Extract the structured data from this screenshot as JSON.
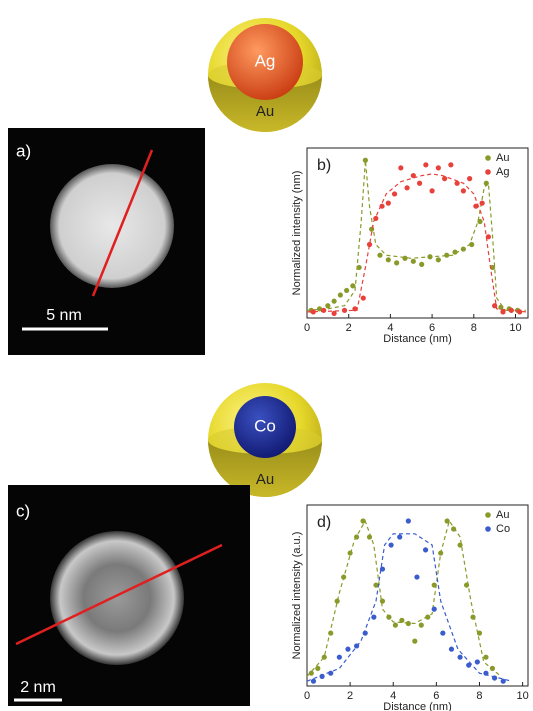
{
  "figure": {
    "sphere_top": {
      "core": "Ag",
      "shell": "Au"
    },
    "panel_a": {
      "label": "a)",
      "scale": "5 nm"
    },
    "sphere_bottom": {
      "core": "Co",
      "shell": "Au"
    },
    "panel_c": {
      "label": "c)",
      "scale": "2 nm"
    }
  },
  "chart_data": [
    {
      "type": "scatter",
      "panel_label": "b)",
      "x_label": "Distance (nm)",
      "y_label": "Normalized intensity (nm)",
      "xlim": [
        0,
        10.6
      ],
      "xticks": [
        0,
        2,
        4,
        6,
        8,
        10
      ],
      "ylim": [
        -0.03,
        1.08
      ],
      "legend": "top-right",
      "series": [
        {
          "name": "Au",
          "color": "#8a9a2a",
          "x": [
            0.2,
            0.6,
            1.0,
            1.3,
            1.6,
            1.9,
            2.2,
            2.5,
            2.8,
            3.1,
            3.5,
            3.9,
            4.3,
            4.7,
            5.1,
            5.5,
            5.9,
            6.3,
            6.7,
            7.1,
            7.5,
            7.9,
            8.3,
            8.6,
            8.9,
            9.3,
            9.7,
            10.1
          ],
          "values": [
            0.02,
            0.03,
            0.05,
            0.08,
            0.12,
            0.15,
            0.18,
            0.3,
            1.0,
            0.55,
            0.38,
            0.35,
            0.33,
            0.36,
            0.34,
            0.32,
            0.37,
            0.35,
            0.38,
            0.4,
            0.42,
            0.45,
            0.6,
            0.85,
            0.3,
            0.04,
            0.03,
            0.02
          ],
          "fit": {
            "x": [
              0,
              1,
              1.8,
              2.3,
              2.6,
              2.8,
              3.0,
              3.3,
              3.8,
              5,
              6,
              7,
              7.8,
              8.2,
              8.5,
              8.7,
              8.9,
              9.1,
              9.5,
              10.5
            ],
            "values": [
              0.02,
              0.03,
              0.05,
              0.15,
              0.6,
              1.0,
              0.7,
              0.45,
              0.38,
              0.36,
              0.37,
              0.38,
              0.45,
              0.6,
              0.82,
              0.85,
              0.5,
              0.1,
              0.02,
              0.02
            ]
          }
        },
        {
          "name": "Ag",
          "color": "#e8403a",
          "x": [
            0.3,
            0.8,
            1.3,
            1.8,
            2.3,
            2.7,
            3.0,
            3.3,
            3.6,
            3.9,
            4.2,
            4.5,
            4.8,
            5.1,
            5.4,
            5.7,
            6.0,
            6.3,
            6.6,
            6.9,
            7.2,
            7.5,
            7.8,
            8.1,
            8.4,
            8.7,
            9.0,
            9.4,
            9.8,
            10.2
          ],
          "values": [
            0.01,
            0.02,
            0.0,
            0.02,
            0.03,
            0.1,
            0.45,
            0.62,
            0.7,
            0.72,
            0.78,
            0.95,
            0.82,
            0.9,
            0.85,
            0.97,
            0.8,
            0.95,
            0.88,
            0.97,
            0.85,
            0.8,
            0.88,
            0.7,
            0.72,
            0.5,
            0.05,
            0.01,
            0.02,
            0.01
          ],
          "fit": {
            "x": [
              0,
              2.4,
              2.8,
              3.2,
              3.8,
              4.5,
              5.5,
              6,
              6.5,
              7.5,
              8,
              8.5,
              8.8,
              9.1,
              10.5
            ],
            "values": [
              0.01,
              0.02,
              0.3,
              0.6,
              0.78,
              0.86,
              0.9,
              0.91,
              0.9,
              0.85,
              0.78,
              0.6,
              0.3,
              0.03,
              0.01
            ]
          }
        }
      ]
    },
    {
      "type": "scatter",
      "panel_label": "d)",
      "x_label": "Distance (nm)",
      "y_label": "Normalized intensity (a.u.)",
      "xlim": [
        0,
        10.25
      ],
      "xticks": [
        0,
        2,
        4,
        6,
        8,
        10
      ],
      "ylim": [
        -0.03,
        1.1
      ],
      "legend": "top-right",
      "series": [
        {
          "name": "Au",
          "color": "#8a9a2a",
          "x": [
            0.2,
            0.5,
            0.8,
            1.1,
            1.4,
            1.7,
            2.0,
            2.3,
            2.6,
            2.9,
            3.2,
            3.5,
            3.8,
            4.1,
            4.4,
            4.7,
            5.0,
            5.3,
            5.6,
            5.9,
            6.2,
            6.5,
            6.8,
            7.1,
            7.4,
            7.7,
            8.0,
            8.3,
            8.6
          ],
          "values": [
            0.05,
            0.08,
            0.15,
            0.3,
            0.5,
            0.65,
            0.8,
            0.9,
            1.0,
            0.9,
            0.6,
            0.5,
            0.4,
            0.35,
            0.38,
            0.36,
            0.25,
            0.35,
            0.4,
            0.6,
            0.8,
            1.0,
            0.95,
            0.85,
            0.6,
            0.4,
            0.3,
            0.15,
            0.08
          ],
          "fit": {
            "x": [
              0,
              0.8,
              1.5,
              2.2,
              2.7,
              3.1,
              3.5,
              4,
              5,
              5.8,
              6.2,
              6.6,
              7.1,
              7.6,
              8.2,
              9
            ],
            "values": [
              0.03,
              0.15,
              0.55,
              0.88,
              1.0,
              0.85,
              0.45,
              0.37,
              0.36,
              0.42,
              0.8,
              1.0,
              0.9,
              0.5,
              0.12,
              0.03
            ]
          }
        },
        {
          "name": "Co",
          "color": "#3a5ccc",
          "x": [
            0.3,
            0.7,
            1.1,
            1.5,
            1.9,
            2.3,
            2.7,
            3.1,
            3.5,
            3.9,
            4.3,
            4.7,
            5.1,
            5.5,
            5.9,
            6.3,
            6.7,
            7.1,
            7.5,
            7.9,
            8.3,
            8.7,
            9.1
          ],
          "values": [
            0.0,
            0.03,
            0.05,
            0.15,
            0.2,
            0.22,
            0.3,
            0.4,
            0.7,
            0.85,
            0.9,
            1.0,
            0.65,
            0.82,
            0.45,
            0.3,
            0.2,
            0.15,
            0.1,
            0.12,
            0.05,
            0.02,
            0.0
          ],
          "fit": {
            "x": [
              0,
              1.5,
              2.5,
              3.2,
              3.6,
              4,
              5,
              5.8,
              6.2,
              7,
              8,
              9.5
            ],
            "values": [
              0.0,
              0.08,
              0.25,
              0.5,
              0.85,
              0.92,
              0.92,
              0.85,
              0.5,
              0.2,
              0.05,
              0.0
            ]
          }
        }
      ]
    }
  ]
}
